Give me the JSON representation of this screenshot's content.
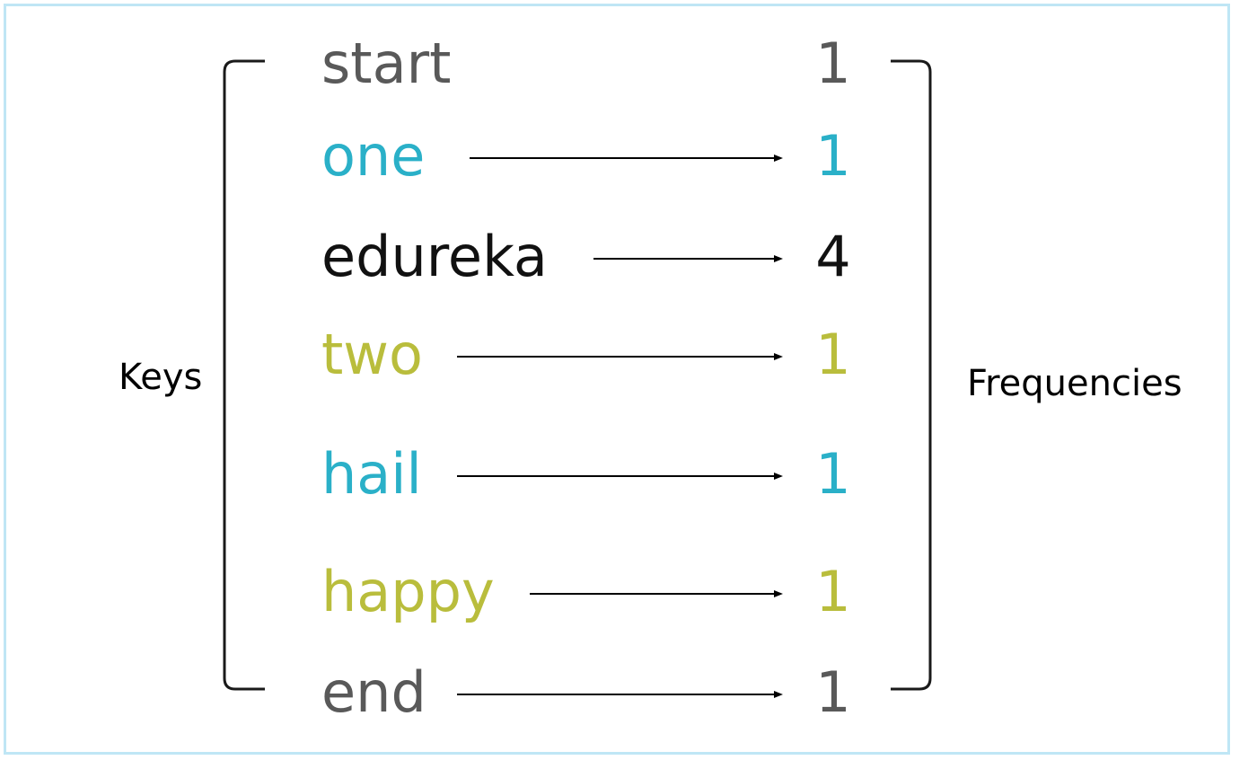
{
  "labels": {
    "keys": "Keys",
    "frequencies": "Frequencies"
  },
  "colors": {
    "gray": "#595959",
    "teal": "#2ab0c8",
    "black": "#111111",
    "olive": "#b9bd3c",
    "frame": "#bfe6f5",
    "bracket": "#1a1a1a",
    "arrow": "#000000"
  },
  "rows": [
    {
      "key": "start",
      "freq": "1",
      "color": "gray",
      "arrow": false
    },
    {
      "key": "one",
      "freq": "1",
      "color": "teal",
      "arrow": true
    },
    {
      "key": "edureka",
      "freq": "4",
      "color": "black",
      "arrow": true
    },
    {
      "key": "two",
      "freq": "1",
      "color": "olive",
      "arrow": true
    },
    {
      "key": "hail",
      "freq": "1",
      "color": "teal",
      "arrow": true
    },
    {
      "key": "happy",
      "freq": "1",
      "color": "olive",
      "arrow": true
    },
    {
      "key": "end",
      "freq": "1",
      "color": "gray",
      "arrow": true
    }
  ]
}
